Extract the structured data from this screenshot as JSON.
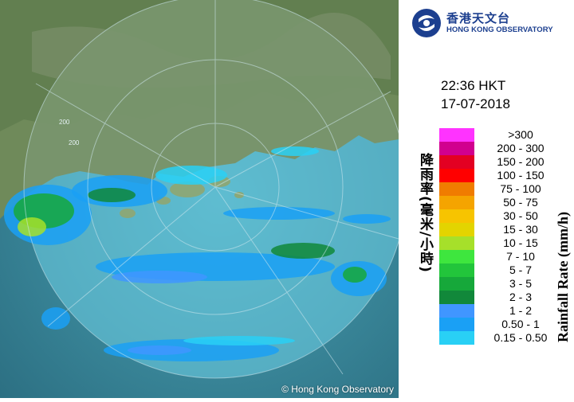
{
  "map": {
    "copyright": "© Hong Kong Observatory",
    "range_ring_labels": [
      "200",
      "200"
    ]
  },
  "logo": {
    "chinese_name": "香港天文台",
    "english_name": "HONG KONG OBSERVATORY"
  },
  "timestamp": {
    "time": "22:36 HKT",
    "date": "17-07-2018"
  },
  "legend": {
    "title_chinese": "降雨率(毫米/小時)",
    "title_english": "Rainfall Rate (mm/h)",
    "items": [
      {
        "label": ">300",
        "color": "#ff33ff"
      },
      {
        "label": "200 - 300",
        "color": "#d1008f"
      },
      {
        "label": "150 - 200",
        "color": "#e30022"
      },
      {
        "label": "100 - 150",
        "color": "#ff0000"
      },
      {
        "label": "75 - 100",
        "color": "#f07c00"
      },
      {
        "label": "50 - 75",
        "color": "#f5a400"
      },
      {
        "label": "30 - 50",
        "color": "#f7c400"
      },
      {
        "label": "15 - 30",
        "color": "#e3d400"
      },
      {
        "label": "10 - 15",
        "color": "#a6e02a"
      },
      {
        "label": "7 - 10",
        "color": "#3ee63e"
      },
      {
        "label": "5 - 7",
        "color": "#22c53b"
      },
      {
        "label": "3 - 5",
        "color": "#16a83a"
      },
      {
        "label": "2 - 3",
        "color": "#11883a"
      },
      {
        "label": "1 - 2",
        "color": "#4096ff"
      },
      {
        "label": "0.50 - 1",
        "color": "#1aa0f5"
      },
      {
        "label": "0.15 - 0.50",
        "color": "#29d0f5"
      }
    ]
  },
  "colors": {
    "sea": "#3a7f8f",
    "land": "#6f8a5a",
    "brand_blue": "#1c3f8f"
  }
}
